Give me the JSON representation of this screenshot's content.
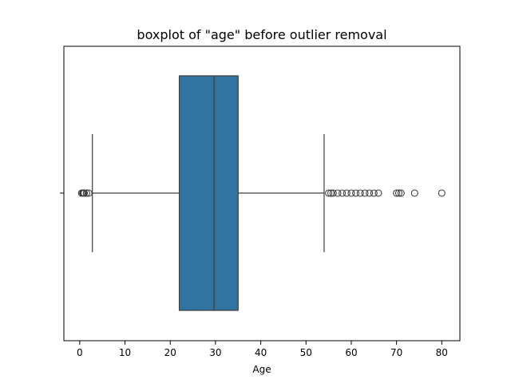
{
  "chart_data": {
    "type": "box",
    "title": "boxplot of \"age\" before outlier removal",
    "xlabel": "Age",
    "ylabel": "",
    "xlim": [
      -3.5,
      84.0
    ],
    "xticks": [
      0,
      10,
      20,
      30,
      40,
      50,
      60,
      70,
      80
    ],
    "grid": false,
    "box": {
      "whisker_low": 2.8,
      "q1": 22.0,
      "median": 29.7,
      "q3": 35.0,
      "whisker_high": 54.0,
      "fill_color": "#3274a1",
      "line_color": "#3d3d3d"
    },
    "outliers": [
      0.42,
      0.67,
      0.75,
      0.83,
      0.92,
      1.0,
      1.5,
      2.0,
      55.0,
      55.5,
      56.0,
      57.0,
      58.0,
      59.0,
      60.0,
      61.0,
      62.0,
      63.0,
      64.0,
      65.0,
      66.0,
      70.0,
      70.5,
      71.0,
      74.0,
      80.0
    ]
  }
}
